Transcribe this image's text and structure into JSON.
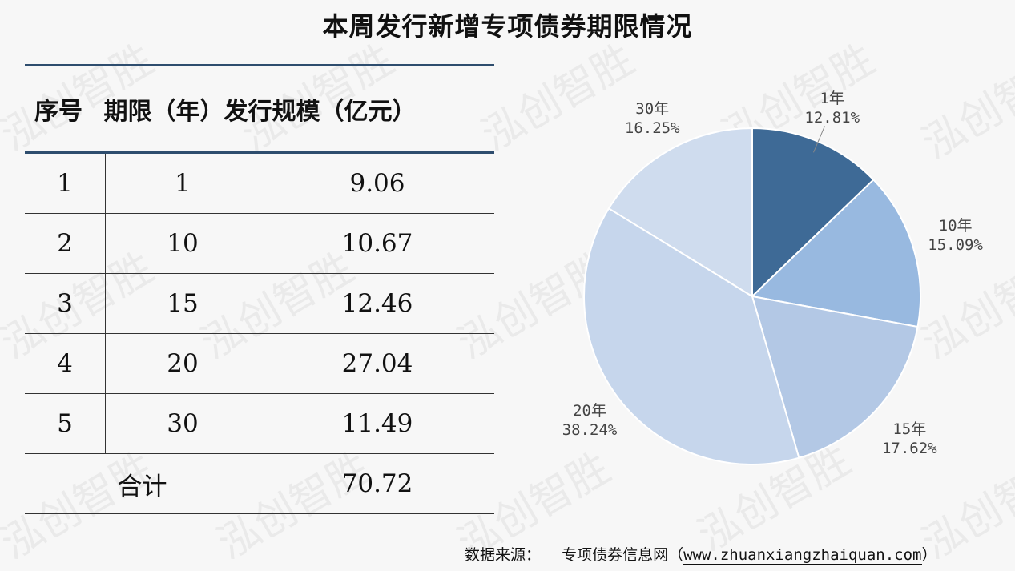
{
  "title": "本周发行新增专项债券期限情况",
  "watermark": "泓创智胜",
  "table": {
    "headers": [
      "序号",
      "期限（年）",
      "发行规模（亿元）"
    ],
    "rows": [
      {
        "no": "1",
        "term": "1",
        "amount": "9.06"
      },
      {
        "no": "2",
        "term": "10",
        "amount": "10.67"
      },
      {
        "no": "3",
        "term": "15",
        "amount": "12.46"
      },
      {
        "no": "4",
        "term": "20",
        "amount": "27.04"
      },
      {
        "no": "5",
        "term": "30",
        "amount": "11.49"
      }
    ],
    "total_label": "合计",
    "total_value": "70.72"
  },
  "chart_data": {
    "type": "pie",
    "categories": [
      "1年",
      "10年",
      "15年",
      "20年",
      "30年"
    ],
    "values": [
      9.06,
      10.67,
      12.46,
      27.04,
      11.49
    ],
    "percent_labels": [
      "12.81%",
      "15.09%",
      "17.62%",
      "38.24%",
      "16.25%"
    ],
    "colors": [
      "#3e6a96",
      "#98b9e0",
      "#b3c8e5",
      "#c6d6ec",
      "#cfdcee"
    ],
    "start": "12 o'clock, clockwise"
  },
  "source": {
    "label": "数据来源：",
    "text": "专项债券信息网（",
    "url": "www.zhuanxiangzhaiquan.com",
    "close": "）"
  }
}
